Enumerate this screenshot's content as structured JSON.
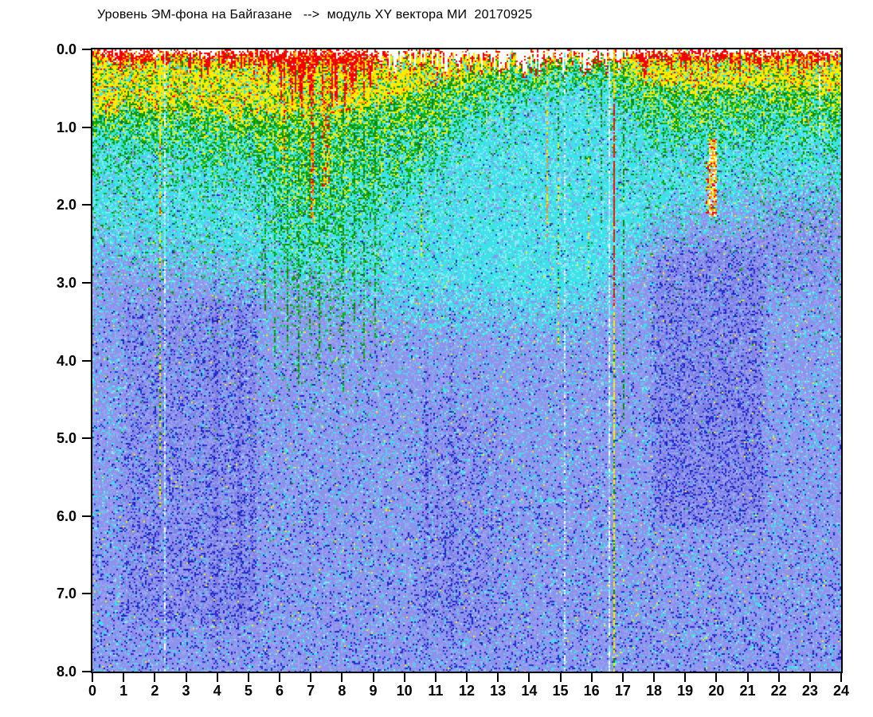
{
  "title": "Уровень ЭМ-фона на Байгазане   -->  модуль XY вектора МИ  20170925",
  "chart_data": {
    "type": "heatmap",
    "title": "Уровень ЭМ-фона на Байгазане   -->  модуль XY вектора МИ  20170925",
    "xlabel": "",
    "ylabel": "",
    "x_range": [
      0,
      24
    ],
    "y_range": [
      0,
      8
    ],
    "y_inverted": true,
    "x_ticks": [
      "0",
      "1",
      "2",
      "3",
      "4",
      "5",
      "6",
      "7",
      "8",
      "9",
      "10",
      "11",
      "12",
      "13",
      "14",
      "15",
      "16",
      "17",
      "18",
      "19",
      "20",
      "21",
      "22",
      "23",
      "24"
    ],
    "y_ticks": [
      "0.0",
      "1.0",
      "2.0",
      "3.0",
      "4.0",
      "5.0",
      "6.0",
      "7.0",
      "8.0"
    ],
    "legend": "none",
    "grid": false,
    "colormap_order": [
      "white",
      "red",
      "orange",
      "yellow",
      "green",
      "cyan",
      "periwinkle",
      "darkblue"
    ],
    "render": {
      "seed": 1337,
      "cell": 2,
      "palette": {
        "white": "#ffffff",
        "red": "#f20000",
        "red2": "#e02800",
        "orange": "#ff9400",
        "yellow": "#ffec00",
        "green": "#12b412",
        "greenDark": "#0a8a0a",
        "cyan": "#3ce2e8",
        "cyanLight": "#86ecf0",
        "peri": "#8d92ec",
        "periLight": "#9ea2f0",
        "periDark": "#7e83e4",
        "darkBlue": "#2a30d6",
        "darkBlue2": "#1a20c0"
      },
      "bands": {
        "top": [
          [
            0,
            0.04
          ],
          [
            9,
            0.05
          ],
          [
            9.6,
            0.16
          ],
          [
            14.2,
            0.18
          ],
          [
            16.9,
            0.14
          ],
          [
            17.3,
            0.05
          ],
          [
            24,
            0.04
          ]
        ],
        "red": [
          [
            0,
            0.13
          ],
          [
            5.4,
            0.16
          ],
          [
            6.2,
            0.42
          ],
          [
            8.3,
            0.45
          ],
          [
            9,
            0.25
          ],
          [
            9.6,
            0.06
          ],
          [
            14,
            0.05
          ],
          [
            17,
            0.07
          ],
          [
            17.6,
            0.16
          ],
          [
            21,
            0.15
          ],
          [
            24,
            0.16
          ]
        ],
        "yellow": [
          [
            0,
            0.78
          ],
          [
            3,
            0.72
          ],
          [
            5.5,
            0.85
          ],
          [
            8.5,
            0.85
          ],
          [
            9,
            0.72
          ],
          [
            11,
            0.45
          ],
          [
            14,
            0.14
          ],
          [
            16.8,
            0.16
          ],
          [
            17.6,
            0.4
          ],
          [
            20,
            0.52
          ],
          [
            23,
            0.5
          ],
          [
            24,
            0.55
          ]
        ],
        "green": [
          [
            0,
            1.35
          ],
          [
            2,
            1.2
          ],
          [
            3.5,
            1.45
          ],
          [
            5.5,
            1.6
          ],
          [
            6.3,
            2.4
          ],
          [
            7.2,
            2.6
          ],
          [
            8.2,
            2.4
          ],
          [
            9,
            2.05
          ],
          [
            10,
            1.7
          ],
          [
            12,
            1.05
          ],
          [
            14,
            0.55
          ],
          [
            16.5,
            0.5
          ],
          [
            17.3,
            0.9
          ],
          [
            18,
            1.15
          ],
          [
            20,
            1.25
          ],
          [
            22,
            1.1
          ],
          [
            24,
            1.25
          ]
        ],
        "cyanEnd": [
          [
            0,
            2.0
          ],
          [
            3,
            2.25
          ],
          [
            6,
            2.55
          ],
          [
            10,
            2.85
          ],
          [
            14,
            3.05
          ],
          [
            16,
            2.95
          ],
          [
            17,
            2.4
          ],
          [
            18,
            1.9
          ],
          [
            19.5,
            1.6
          ],
          [
            21,
            1.5
          ],
          [
            24,
            1.4
          ]
        ],
        "sparseGreen": [
          [
            0,
            1.25
          ],
          [
            9,
            1.25
          ],
          [
            9.6,
            0.55
          ],
          [
            17,
            0.55
          ],
          [
            17.4,
            0.85
          ],
          [
            24,
            0.85
          ]
        ]
      },
      "blueRamp": 0.9,
      "darkBase": 0.015,
      "darkDepthGain": 0.095,
      "patches": [
        {
          "h0": 0.8,
          "h1": 5.4,
          "d0": 3.0,
          "d1": 7.6,
          "dark": 0.09,
          "shade": 0.35
        },
        {
          "h0": 10.3,
          "h1": 13.3,
          "d0": 4.4,
          "d1": 7.8,
          "dark": 0.06,
          "shade": 0.2
        },
        {
          "h0": 17.8,
          "h1": 21.7,
          "d0": 2.3,
          "d1": 6.3,
          "dark": 0.13,
          "shade": 0.55
        },
        {
          "h0": 21.5,
          "h1": 24,
          "d0": 1.7,
          "d1": 3.3,
          "dark": 0.05,
          "shade": 0.3
        },
        {
          "h0": 3.8,
          "h1": 4.1,
          "d0": 2.6,
          "d1": 7.8,
          "dark": 0.08,
          "shade": 0.5
        },
        {
          "h0": 4.55,
          "h1": 4.85,
          "d0": 2.6,
          "d1": 7.8,
          "dark": 0.08,
          "shade": 0.5
        },
        {
          "h0": 5.0,
          "h1": 5.3,
          "d0": 2.6,
          "d1": 7.2,
          "dark": 0.07,
          "shade": 0.45
        },
        {
          "h0": 10.6,
          "h1": 10.8,
          "d0": 3.0,
          "d1": 7.8,
          "dark": 0.06,
          "shade": 0.4
        },
        {
          "h0": 11.4,
          "h1": 11.65,
          "d0": 3.0,
          "d1": 7.8,
          "dark": 0.06,
          "shade": 0.4
        }
      ],
      "streaks": [
        {
          "h": 2.17,
          "w": 0.07,
          "d0": 0,
          "d1": 1.2,
          "p": 0.9,
          "colors": [
            "yellow"
          ]
        },
        {
          "h": 2.17,
          "w": 0.07,
          "d0": 1.2,
          "d1": 2.1,
          "p": 0.6,
          "colors": [
            "red2",
            "orange",
            "yellow"
          ]
        },
        {
          "h": 2.17,
          "w": 0.07,
          "d0": 2.1,
          "d1": 5.9,
          "p": 0.5,
          "colors": [
            "yellow",
            "greenDark"
          ]
        },
        {
          "h": 2.34,
          "w": 0.06,
          "d0": 0,
          "d1": 8,
          "p": 0.6,
          "colors": [
            "white",
            "cyanLight"
          ]
        },
        {
          "h": 5.52,
          "w": 0.05,
          "d0": 0.6,
          "d1": 3.4,
          "p": 0.5,
          "colors": [
            "greenDark",
            "green"
          ]
        },
        {
          "h": 5.85,
          "w": 0.05,
          "d0": 0.6,
          "d1": 4.2,
          "p": 0.5,
          "colors": [
            "greenDark",
            "green"
          ]
        },
        {
          "h": 6.15,
          "w": 0.08,
          "d0": 0,
          "d1": 1.6,
          "p": 0.55,
          "colors": [
            "orange",
            "red"
          ]
        },
        {
          "h": 6.28,
          "w": 0.05,
          "d0": 0.6,
          "d1": 3.8,
          "p": 0.5,
          "colors": [
            "greenDark",
            "green"
          ]
        },
        {
          "h": 6.62,
          "w": 0.05,
          "d0": 0.6,
          "d1": 4.3,
          "p": 0.5,
          "colors": [
            "greenDark",
            "green"
          ]
        },
        {
          "h": 6.95,
          "w": 0.05,
          "d0": 0.6,
          "d1": 3.6,
          "p": 0.5,
          "colors": [
            "greenDark",
            "green"
          ]
        },
        {
          "h": 7.05,
          "w": 0.12,
          "d0": 0,
          "d1": 2.2,
          "p": 0.5,
          "colors": [
            "red",
            "orange"
          ]
        },
        {
          "h": 7.28,
          "w": 0.05,
          "d0": 0.6,
          "d1": 4.1,
          "p": 0.5,
          "colors": [
            "greenDark",
            "green"
          ]
        },
        {
          "h": 7.5,
          "w": 0.3,
          "d0": 0,
          "d1": 1.8,
          "p": 0.4,
          "colors": [
            "orange",
            "yellow",
            "red"
          ]
        },
        {
          "h": 7.62,
          "w": 0.05,
          "d0": 0.6,
          "d1": 3.9,
          "p": 0.5,
          "colors": [
            "greenDark",
            "green"
          ]
        },
        {
          "h": 8.05,
          "w": 0.05,
          "d0": 0.6,
          "d1": 4.4,
          "p": 0.5,
          "colors": [
            "greenDark",
            "green"
          ]
        },
        {
          "h": 8.38,
          "w": 0.05,
          "d0": 0.6,
          "d1": 3.5,
          "p": 0.5,
          "colors": [
            "greenDark",
            "green"
          ]
        },
        {
          "h": 8.72,
          "w": 0.05,
          "d0": 0.6,
          "d1": 4.0,
          "p": 0.5,
          "colors": [
            "greenDark",
            "green"
          ]
        },
        {
          "h": 9.05,
          "w": 0.05,
          "d0": 0.6,
          "d1": 3.7,
          "p": 0.5,
          "colors": [
            "greenDark",
            "green"
          ]
        },
        {
          "h": 10.55,
          "w": 0.05,
          "d0": 0.4,
          "d1": 2.7,
          "p": 0.35,
          "colors": [
            "greenDark",
            "yellow"
          ]
        },
        {
          "h": 14.6,
          "w": 0.05,
          "d0": 0,
          "d1": 2.4,
          "p": 0.5,
          "colors": [
            "orange",
            "yellow"
          ]
        },
        {
          "h": 14.95,
          "w": 0.05,
          "d0": 0,
          "d1": 3.8,
          "p": 0.4,
          "colors": [
            "yellow",
            "greenDark"
          ]
        },
        {
          "h": 15.15,
          "w": 0.05,
          "d0": 0,
          "d1": 8,
          "p": 0.45,
          "colors": [
            "cyanLight",
            "white"
          ]
        },
        {
          "h": 15.9,
          "w": 0.05,
          "d0": 0,
          "d1": 3.0,
          "p": 0.35,
          "colors": [
            "yellow",
            "greenDark"
          ]
        },
        {
          "h": 16.3,
          "w": 0.05,
          "d0": 0,
          "d1": 2.4,
          "p": 0.3,
          "colors": [
            "greenDark"
          ]
        },
        {
          "h": 16.55,
          "w": 0.06,
          "d0": 0,
          "d1": 8,
          "p": 0.7,
          "colors": [
            "white",
            "cyanLight"
          ]
        },
        {
          "h": 16.72,
          "w": 0.07,
          "d0": 0,
          "d1": 0.7,
          "p": 0.85,
          "colors": [
            "yellow",
            "orange"
          ]
        },
        {
          "h": 16.72,
          "w": 0.07,
          "d0": 0.7,
          "d1": 3.3,
          "p": 0.85,
          "colors": [
            "red2",
            "red"
          ]
        },
        {
          "h": 16.72,
          "w": 0.07,
          "d0": 3.3,
          "d1": 8,
          "p": 0.8,
          "colors": [
            "yellow",
            "yellow",
            "greenDark"
          ]
        },
        {
          "h": 17.02,
          "w": 0.05,
          "d0": 0,
          "d1": 5,
          "p": 0.4,
          "colors": [
            "greenDark"
          ]
        },
        {
          "h": 19.9,
          "w": 0.24,
          "d0": 1.15,
          "d1": 2.15,
          "p": 0.78,
          "colors": [
            "red",
            "yellow",
            "white",
            "orange"
          ]
        },
        {
          "h": 19.72,
          "w": 0.1,
          "d0": 1.45,
          "d1": 2.1,
          "p": 0.45,
          "colors": [
            "red",
            "yellow"
          ]
        },
        {
          "h": 22.95,
          "w": 0.05,
          "d0": 0,
          "d1": 1.0,
          "p": 0.4,
          "colors": [
            "orange",
            "yellow"
          ]
        },
        {
          "h": 23.3,
          "w": 0.05,
          "d0": 0,
          "d1": 1.15,
          "p": 0.55,
          "colors": [
            "white",
            "cyanLight"
          ]
        }
      ]
    }
  }
}
